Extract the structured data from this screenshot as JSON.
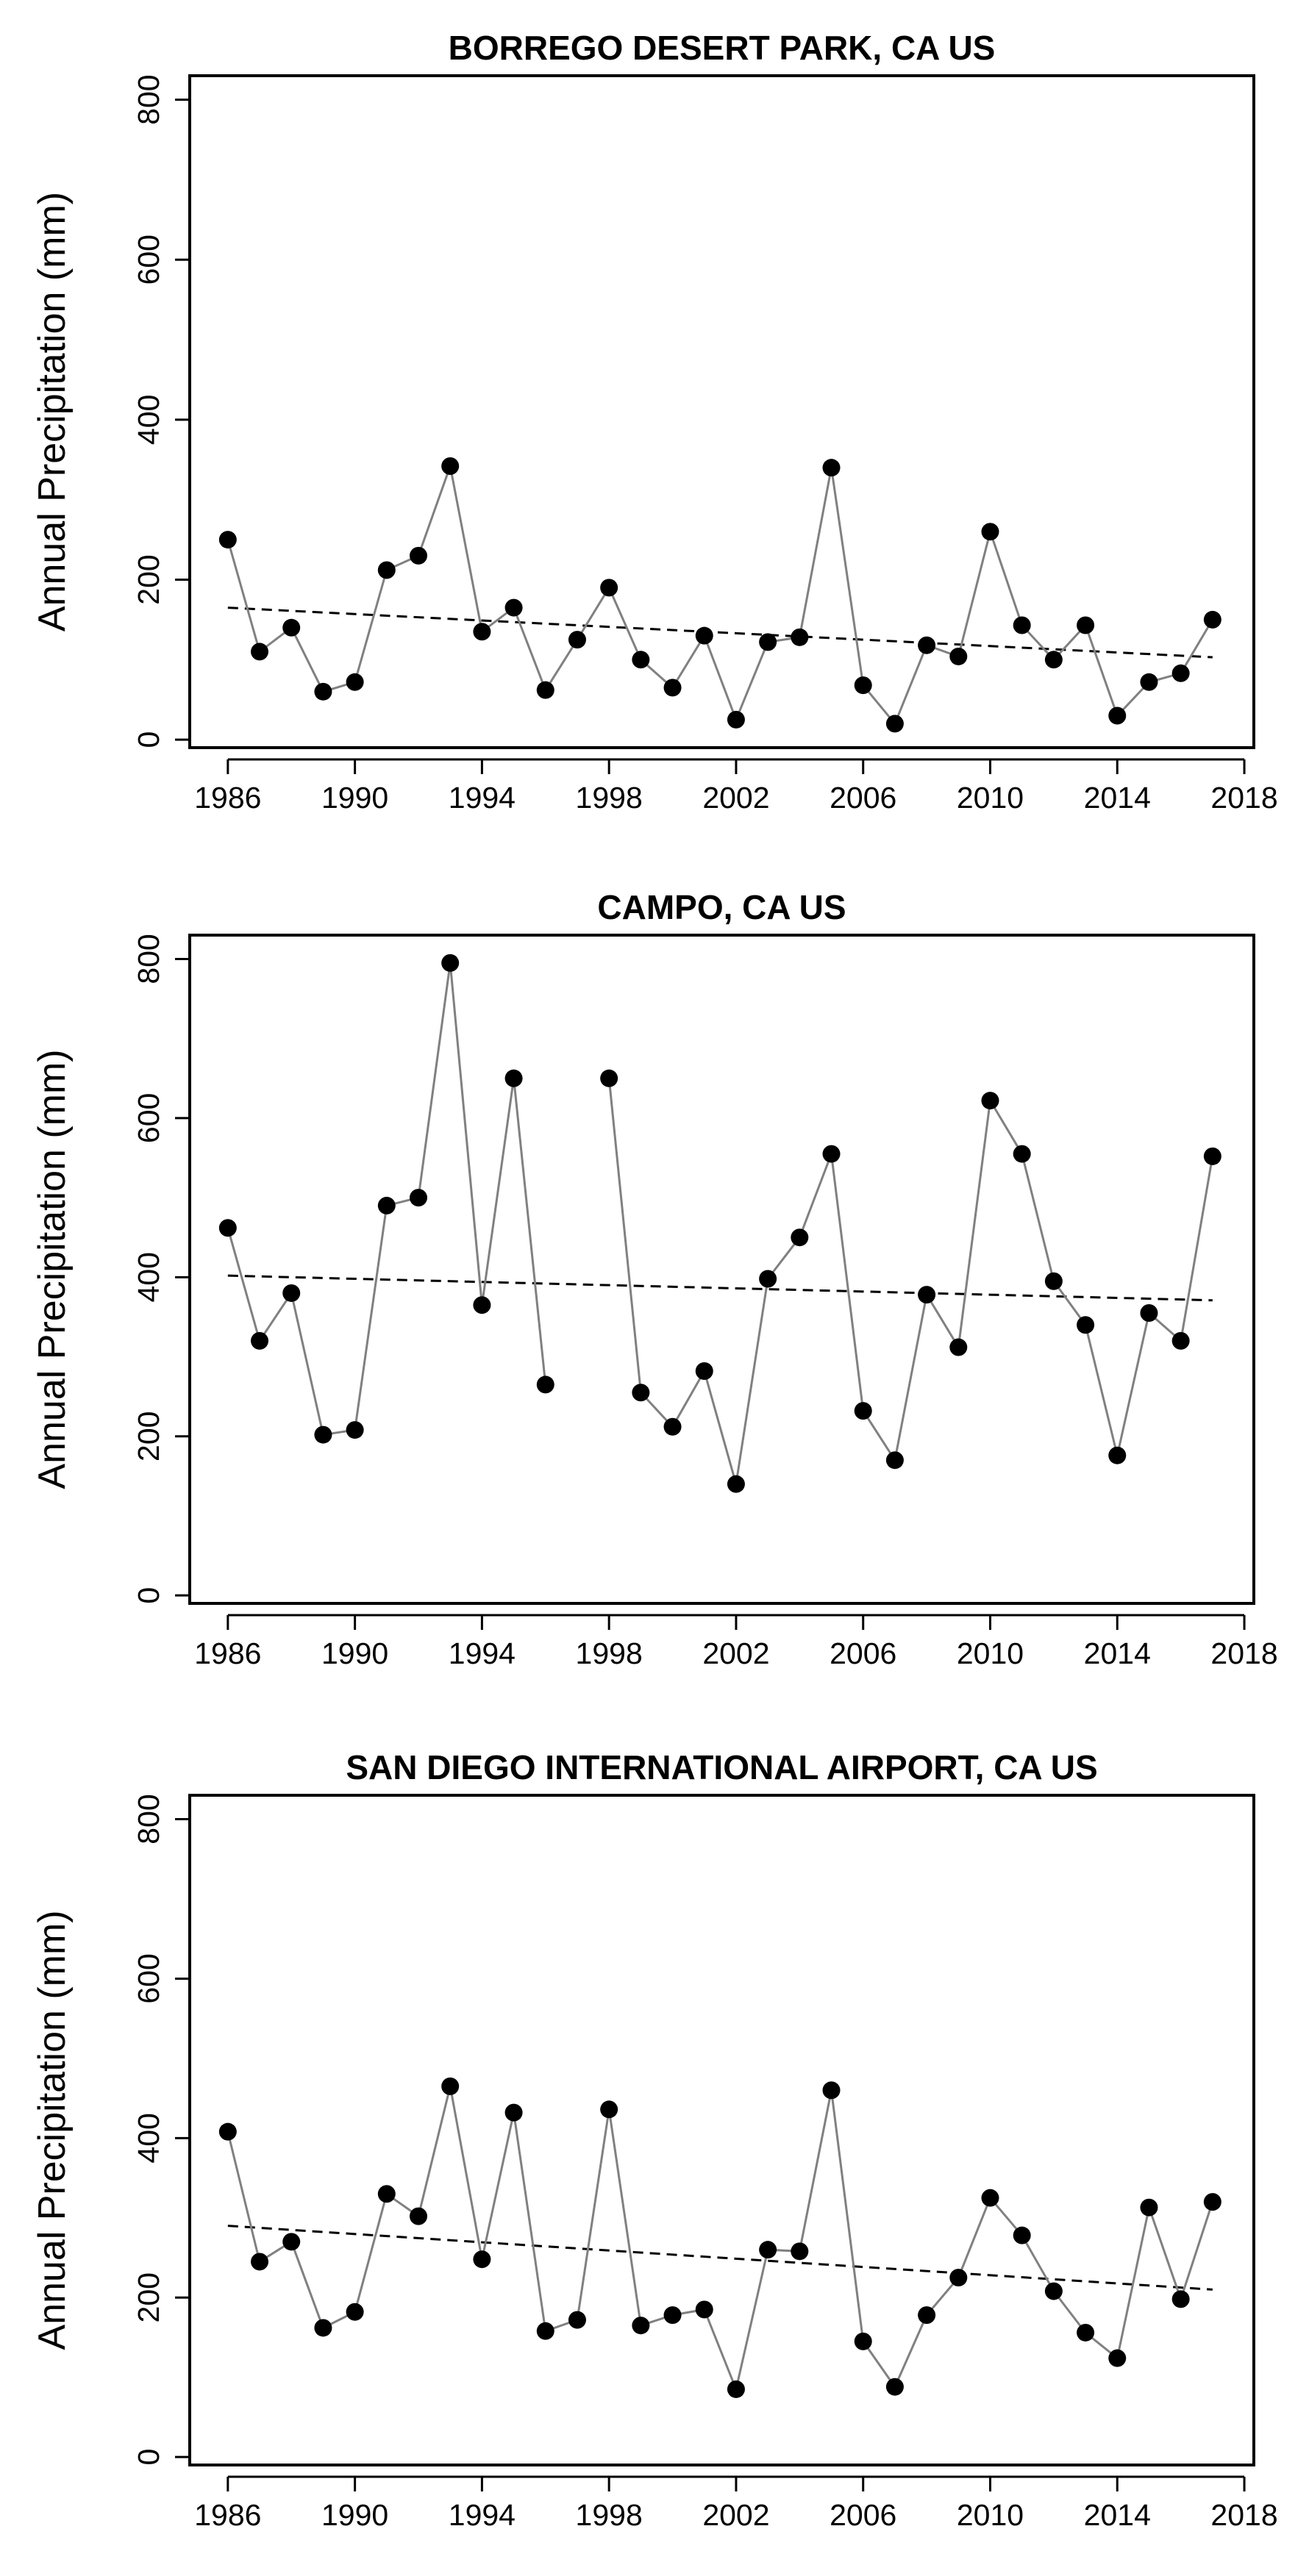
{
  "chart_data": [
    {
      "type": "line",
      "title": "BORREGO DESERT PARK, CA US",
      "xlabel": "",
      "ylabel": "Annual Precipitation (mm)",
      "xlim": [
        1984.8,
        2018.3
      ],
      "ylim": [
        -10,
        830
      ],
      "x_ticks": [
        1986,
        1990,
        1994,
        1998,
        2002,
        2006,
        2010,
        2014,
        2018
      ],
      "y_ticks": [
        0,
        200,
        400,
        600,
        800
      ],
      "grid": false,
      "legend": "none",
      "series": [
        {
          "x": [
            1986,
            1987,
            1988,
            1989,
            1990,
            1991,
            1992,
            1993,
            1994,
            1995,
            1996,
            1997,
            1998,
            1999,
            2000,
            2001,
            2002,
            2003,
            2004,
            2005,
            2006,
            2007,
            2008,
            2009,
            2010,
            2011,
            2012,
            2013,
            2014,
            2015,
            2016,
            2017
          ],
          "values": [
            250,
            110,
            140,
            60,
            72,
            212,
            230,
            342,
            135,
            165,
            62,
            125,
            190,
            100,
            65,
            130,
            25,
            122,
            128,
            340,
            68,
            20,
            118,
            104,
            260,
            143,
            100,
            143,
            30,
            72,
            83,
            150
          ]
        }
      ],
      "trend": {
        "x": [
          1986,
          2017
        ],
        "values": [
          165,
          103
        ]
      }
    },
    {
      "type": "line",
      "title": "CAMPO, CA US",
      "xlabel": "",
      "ylabel": "Annual Precipitation (mm)",
      "xlim": [
        1984.8,
        2018.3
      ],
      "ylim": [
        -10,
        830
      ],
      "x_ticks": [
        1986,
        1990,
        1994,
        1998,
        2002,
        2006,
        2010,
        2014,
        2018
      ],
      "y_ticks": [
        0,
        200,
        400,
        600,
        800
      ],
      "grid": false,
      "legend": "none",
      "series": [
        {
          "x": [
            1986,
            1987,
            1988,
            1989,
            1990,
            1991,
            1992,
            1993,
            1994,
            1995,
            1996,
            1998,
            1999,
            2000,
            2001,
            2002,
            2003,
            2004,
            2005,
            2006,
            2007,
            2008,
            2009,
            2010,
            2011,
            2012,
            2013,
            2014,
            2015,
            2016,
            2017
          ],
          "values": [
            462,
            320,
            380,
            202,
            208,
            490,
            500,
            795,
            365,
            650,
            265,
            650,
            255,
            212,
            282,
            140,
            398,
            450,
            555,
            232,
            170,
            378,
            312,
            622,
            555,
            395,
            340,
            176,
            355,
            320,
            552
          ]
        }
      ],
      "trend": {
        "x": [
          1986,
          2017
        ],
        "values": [
          402,
          371
        ]
      }
    },
    {
      "type": "line",
      "title": "SAN DIEGO INTERNATIONAL AIRPORT, CA US",
      "xlabel": "",
      "ylabel": "Annual Precipitation (mm)",
      "xlim": [
        1984.8,
        2018.3
      ],
      "ylim": [
        -10,
        830
      ],
      "x_ticks": [
        1986,
        1990,
        1994,
        1998,
        2002,
        2006,
        2010,
        2014,
        2018
      ],
      "y_ticks": [
        0,
        200,
        400,
        600,
        800
      ],
      "grid": false,
      "legend": "none",
      "series": [
        {
          "x": [
            1986,
            1987,
            1988,
            1989,
            1990,
            1991,
            1992,
            1993,
            1994,
            1995,
            1996,
            1997,
            1998,
            1999,
            2000,
            2001,
            2002,
            2003,
            2004,
            2005,
            2006,
            2007,
            2008,
            2009,
            2010,
            2011,
            2012,
            2013,
            2014,
            2015,
            2016,
            2017
          ],
          "values": [
            408,
            245,
            270,
            162,
            182,
            330,
            302,
            465,
            248,
            432,
            158,
            172,
            436,
            165,
            178,
            185,
            85,
            260,
            258,
            460,
            145,
            88,
            178,
            225,
            325,
            278,
            208,
            156,
            124,
            313,
            198,
            320
          ]
        }
      ],
      "trend": {
        "x": [
          1986,
          2017
        ],
        "values": [
          290,
          210
        ]
      }
    }
  ]
}
